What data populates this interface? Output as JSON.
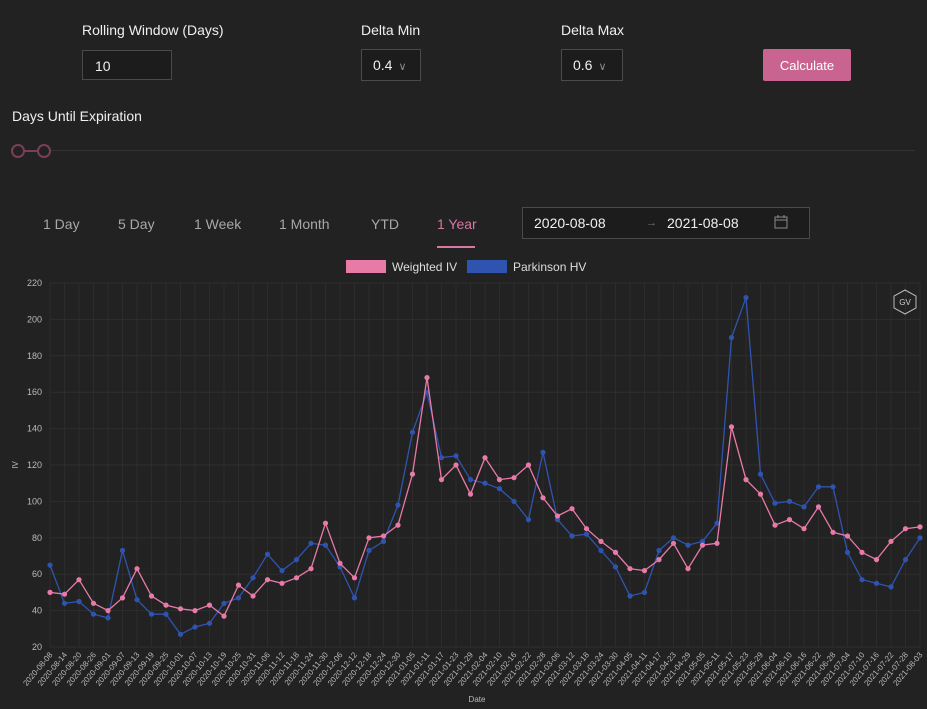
{
  "controls": {
    "rolling_window": {
      "label": "Rolling Window (Days)",
      "value": "10"
    },
    "delta_min": {
      "label": "Delta Min",
      "value": "0.4"
    },
    "delta_max": {
      "label": "Delta Max",
      "value": "0.6"
    },
    "calculate_label": "Calculate",
    "days_until_expiration_label": "Days Until Expiration"
  },
  "tabs": [
    {
      "label": "1 Day"
    },
    {
      "label": "5 Day"
    },
    {
      "label": "1 Week"
    },
    {
      "label": "1 Month"
    },
    {
      "label": "YTD"
    },
    {
      "label": "1 Year",
      "active": true
    }
  ],
  "date_range": {
    "start": "2020-08-08",
    "separator": "→",
    "end": "2021-08-08",
    "icon": "calendar-icon"
  },
  "colors": {
    "accent": "#d877a2",
    "weighted_iv": "#e87aa8",
    "parkinson_hv": "#2f54b0",
    "button": "#c8648f",
    "background": "#222222"
  },
  "chart_data": {
    "type": "line",
    "xlabel": "Date",
    "ylabel": "IV",
    "ylim": [
      20,
      220
    ],
    "yticks": [
      20,
      40,
      60,
      80,
      100,
      120,
      140,
      160,
      180,
      200,
      220
    ],
    "grid": true,
    "legend_position": "top-center",
    "x": [
      "2020-08-08",
      "2020-08-14",
      "2020-08-20",
      "2020-08-26",
      "2020-09-01",
      "2020-09-07",
      "2020-09-13",
      "2020-09-19",
      "2020-09-25",
      "2020-10-01",
      "2020-10-07",
      "2020-10-13",
      "2020-10-19",
      "2020-10-25",
      "2020-10-31",
      "2020-11-06",
      "2020-11-12",
      "2020-11-18",
      "2020-11-24",
      "2020-11-30",
      "2020-12-06",
      "2020-12-12",
      "2020-12-18",
      "2020-12-24",
      "2020-12-30",
      "2021-01-05",
      "2021-01-11",
      "2021-01-17",
      "2021-01-23",
      "2021-01-29",
      "2021-02-04",
      "2021-02-10",
      "2021-02-16",
      "2021-02-22",
      "2021-02-28",
      "2021-03-06",
      "2021-03-12",
      "2021-03-18",
      "2021-03-24",
      "2021-03-30",
      "2021-04-05",
      "2021-04-11",
      "2021-04-17",
      "2021-04-23",
      "2021-04-29",
      "2021-05-05",
      "2021-05-11",
      "2021-05-17",
      "2021-05-23",
      "2021-05-29",
      "2021-06-04",
      "2021-06-10",
      "2021-06-16",
      "2021-06-22",
      "2021-06-28",
      "2021-07-04",
      "2021-07-10",
      "2021-07-16",
      "2021-07-22",
      "2021-07-28",
      "2021-08-03"
    ],
    "series": [
      {
        "name": "Weighted IV",
        "color": "#e87aa8",
        "values": [
          50,
          49,
          57,
          44,
          40,
          47,
          63,
          48,
          43,
          41,
          40,
          43,
          37,
          54,
          48,
          57,
          55,
          58,
          63,
          88,
          66,
          58,
          80,
          81,
          87,
          115,
          168,
          112,
          120,
          104,
          124,
          112,
          113,
          120,
          102,
          92,
          96,
          85,
          78,
          72,
          63,
          62,
          68,
          77,
          63,
          76,
          77,
          141,
          112,
          104,
          87,
          90,
          85,
          97,
          83,
          81,
          72,
          68,
          78,
          85,
          86
        ]
      },
      {
        "name": "Parkinson HV",
        "color": "#2f54b0",
        "values": [
          65,
          44,
          45,
          38,
          36,
          73,
          46,
          38,
          38,
          27,
          31,
          33,
          44,
          47,
          58,
          71,
          62,
          68,
          77,
          76,
          64,
          47,
          73,
          78,
          98,
          138,
          160,
          124,
          125,
          112,
          110,
          107,
          100,
          90,
          127,
          90,
          81,
          82,
          73,
          64,
          48,
          50,
          73,
          80,
          76,
          78,
          88,
          190,
          212,
          115,
          99,
          100,
          97,
          108,
          108,
          72,
          57,
          55,
          53,
          68,
          80
        ]
      }
    ],
    "xticks": [
      "2020-08-08",
      "2020-08-14",
      "2020-08-20",
      "2020-08-26",
      "2020-09-01",
      "2020-09-07",
      "2020-09-13",
      "2020-09-19",
      "2020-09-25",
      "2020-10-01",
      "2020-10-07",
      "2020-10-13",
      "2020-10-19",
      "2020-10-25",
      "2020-10-31",
      "2020-11-06",
      "2020-11-12",
      "2020-11-18",
      "2020-11-24",
      "2020-11-30",
      "2020-12-06",
      "2020-12-12",
      "2020-12-18",
      "2020-12-24",
      "2020-12-30",
      "2021-01-05",
      "2021-01-11",
      "2021-01-17",
      "2021-01-23",
      "2021-01-29",
      "2021-02-04",
      "2021-02-10",
      "2021-02-16",
      "2021-02-22",
      "2021-02-28",
      "2021-03-06",
      "2021-03-12",
      "2021-03-18",
      "2021-03-24",
      "2021-03-30",
      "2021-04-05",
      "2021-04-11",
      "2021-04-17",
      "2021-04-23",
      "2021-04-29",
      "2021-05-05",
      "2021-05-11",
      "2021-05-17",
      "2021-05-23",
      "2021-05-29",
      "2021-06-04",
      "2021-06-10",
      "2021-06-16",
      "2021-06-22",
      "2021-06-28",
      "2021-07-04",
      "2021-07-10",
      "2021-07-16",
      "2021-07-22",
      "2021-07-28",
      "2021-08-03"
    ],
    "logo_text": "GV"
  }
}
